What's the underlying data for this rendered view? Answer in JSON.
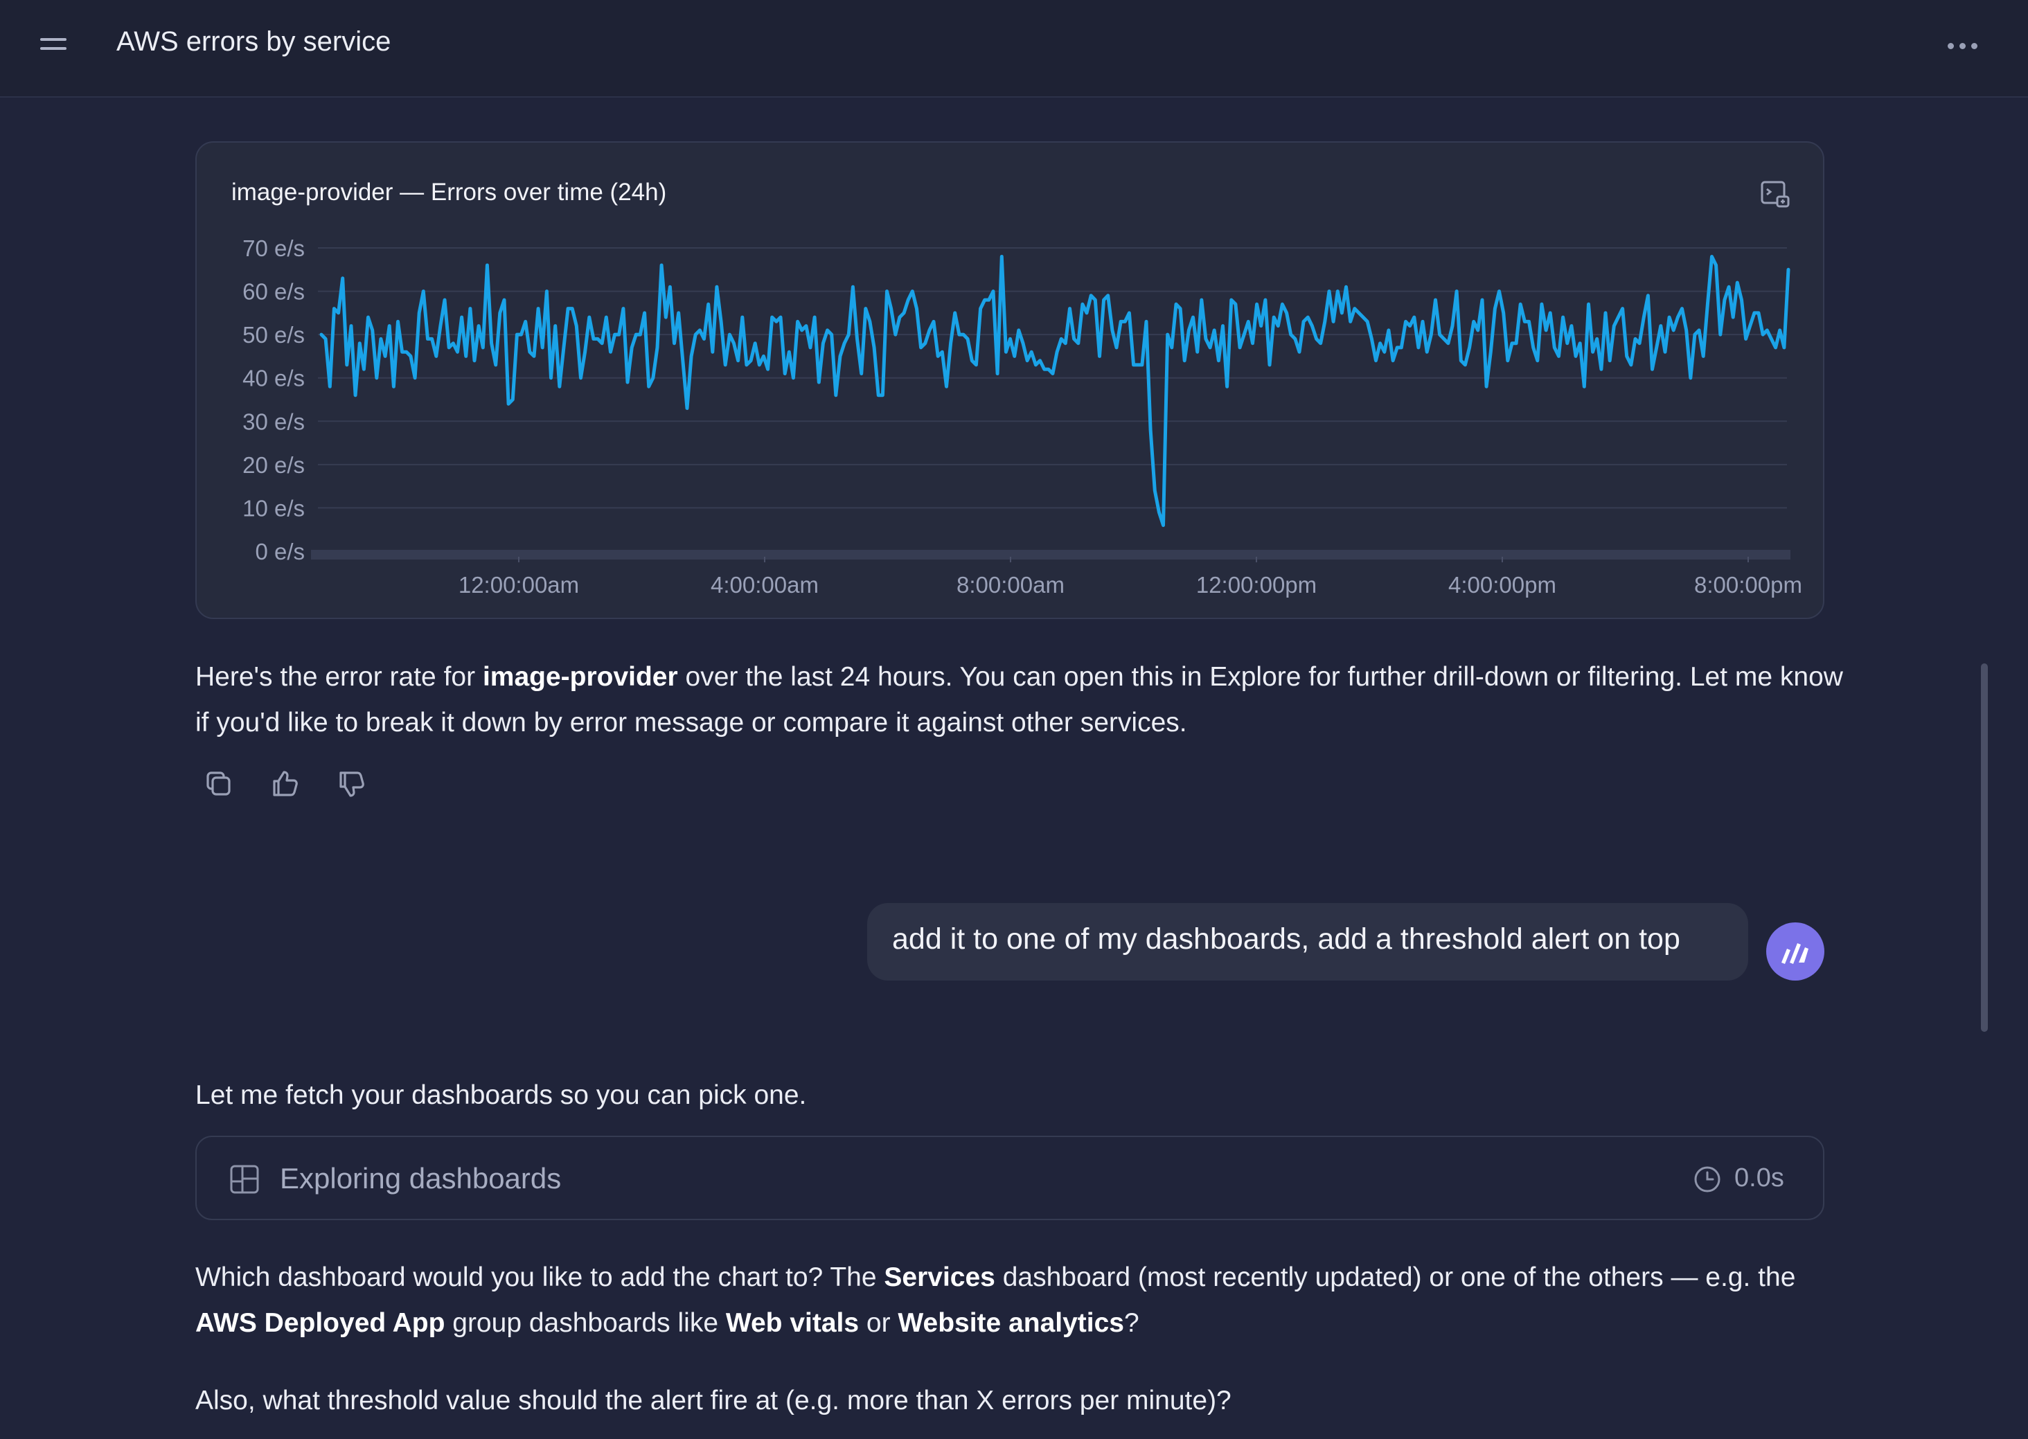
{
  "header": {
    "title": "AWS errors by service",
    "menu_icon": "hamburger-icon",
    "more_icon": "more-horizontal-icon"
  },
  "chart_card": {
    "title": "image-provider — Errors over time (24h)",
    "explore_icon": "open-in-explore-icon"
  },
  "chart_data": {
    "type": "line",
    "title": "image-provider — Errors over time (24h)",
    "xlabel": "",
    "ylabel": "",
    "x_ticks": [
      "12:00:00am",
      "4:00:00am",
      "8:00:00am",
      "12:00:00pm",
      "4:00:00pm",
      "8:00:00pm"
    ],
    "y_ticks": [
      "0 e/s",
      "10 e/s",
      "20 e/s",
      "30 e/s",
      "40 e/s",
      "50 e/s",
      "60 e/s",
      "70 e/s"
    ],
    "ylim": [
      0,
      70
    ],
    "grid": true,
    "color": "#1aa3e8",
    "series": [
      {
        "values": [
          50,
          49,
          38,
          56,
          55,
          63,
          43,
          52,
          36,
          48,
          42,
          54,
          51,
          40,
          49,
          45,
          52,
          38,
          53,
          46,
          46,
          45,
          40,
          55,
          60,
          49,
          49,
          45,
          52,
          58,
          47,
          48,
          46,
          54,
          45,
          56,
          44,
          52,
          47,
          66,
          48,
          43,
          55,
          58,
          34,
          35,
          50,
          50,
          53,
          46,
          45,
          56,
          47,
          60,
          40,
          52,
          38,
          47,
          56,
          56,
          52,
          40,
          46,
          54,
          49,
          49,
          48,
          54,
          46,
          50,
          50,
          56,
          39,
          47,
          50,
          50,
          55,
          38,
          40,
          47,
          66,
          54,
          61,
          48,
          55,
          44,
          33,
          45,
          50,
          51,
          49,
          57,
          46,
          61,
          53,
          43,
          50,
          48,
          44,
          54,
          43,
          44,
          48,
          43,
          45,
          42,
          54,
          53,
          54,
          41,
          46,
          40,
          53,
          51,
          52,
          47,
          54,
          39,
          48,
          51,
          50,
          36,
          45,
          48,
          50,
          61,
          49,
          41,
          56,
          53,
          47,
          36,
          36,
          60,
          56,
          50,
          54,
          55,
          58,
          60,
          56,
          47,
          48,
          51,
          53,
          45,
          46,
          38,
          48,
          55,
          50,
          50,
          49,
          44,
          43,
          56,
          58,
          58,
          60,
          41,
          68,
          46,
          49,
          45,
          51,
          48,
          44,
          46,
          43,
          44,
          42,
          42,
          41,
          46,
          49,
          48,
          56,
          49,
          48,
          57,
          55,
          59,
          58,
          45,
          58,
          59,
          51,
          47,
          53,
          53,
          55,
          43,
          43,
          43,
          53,
          28,
          14,
          9,
          6,
          50,
          47,
          57,
          56,
          44,
          51,
          54,
          46,
          58,
          49,
          47,
          51,
          44,
          52,
          38,
          58,
          57,
          47,
          50,
          53,
          48,
          57,
          52,
          58,
          43,
          54,
          52,
          57,
          55,
          50,
          49,
          46,
          53,
          54,
          52,
          49,
          48,
          53,
          60,
          53,
          60,
          55,
          61,
          53,
          56,
          55,
          54,
          53,
          49,
          44,
          48,
          46,
          51,
          44,
          47,
          47,
          53,
          52,
          54,
          47,
          53,
          46,
          50,
          58,
          50,
          49,
          48,
          52,
          60,
          44,
          43,
          47,
          53,
          51,
          58,
          38,
          46,
          56,
          60,
          55,
          44,
          48,
          48,
          57,
          53,
          53,
          47,
          44,
          57,
          51,
          55,
          47,
          45,
          54,
          48,
          52,
          45,
          48,
          38,
          57,
          46,
          49,
          42,
          55,
          44,
          52,
          54,
          56,
          45,
          43,
          49,
          48,
          54,
          59,
          42,
          47,
          52,
          46,
          54,
          51,
          54,
          56,
          51,
          40,
          50,
          51,
          45,
          57,
          68,
          66,
          50,
          58,
          61,
          54,
          62,
          58,
          49,
          52,
          55,
          55,
          50,
          51,
          49,
          47,
          51,
          47,
          65
        ]
      }
    ]
  },
  "assistant_1": {
    "pre": "Here's the error rate for ",
    "bold": "image-provider",
    "post": " over the last 24 hours. You can open this in Explore for further drill-down or filtering. Let me know if you'd like to break it down by error message or compare it against other services."
  },
  "actions": {
    "copy_icon": "copy-icon",
    "like_icon": "thumbs-up-icon",
    "dislike_icon": "thumbs-down-icon"
  },
  "user_message": {
    "text": "add it to one of my dashboards, add a threshold alert on top"
  },
  "assistant_2": {
    "text": "Let me fetch your dashboards so you can pick one."
  },
  "tool_call": {
    "label": "Exploring dashboards",
    "duration": "0.0s",
    "icon": "dashboard-icon",
    "clock_icon": "clock-icon"
  },
  "assistant_3": {
    "t1": "Which dashboard would you like to add the chart to? The ",
    "b1": "Services",
    "t2": " dashboard (most recently updated) or one of the others — e.g. the ",
    "b2": "AWS Deployed App",
    "t3": " group dashboards like ",
    "b3": "Web vitals",
    "t4": " or ",
    "b4": "Website analytics",
    "t5": "?"
  },
  "assistant_4": {
    "text": "Also, what threshold value should the alert fire at (e.g. more than X errors per minute)?"
  }
}
